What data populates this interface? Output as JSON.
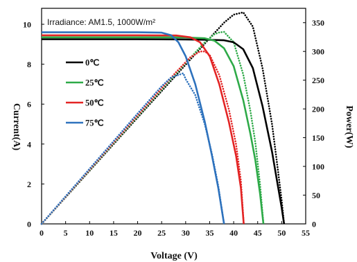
{
  "chart_data": {
    "type": "line",
    "annotation": "Irradiance: AM1.5,  1000W/m²",
    "xlabel": "Voltage (V)",
    "ylabel_left": "Current(A)",
    "ylabel_right": "Power(W)",
    "xlim": [
      0,
      55
    ],
    "ylim_left": [
      0,
      10.8
    ],
    "ylim_right": [
      0,
      375
    ],
    "x_ticks": [
      0,
      5,
      10,
      15,
      20,
      25,
      30,
      35,
      40,
      45,
      50,
      55
    ],
    "y_left_ticks": [
      0,
      2,
      4,
      6,
      8,
      10
    ],
    "y_right_ticks": [
      0,
      50,
      100,
      150,
      200,
      250,
      300,
      350
    ],
    "legend_placement": "upper-left",
    "series": [
      {
        "name": "0℃",
        "color": "#000000",
        "iv": [
          [
            0,
            9.25
          ],
          [
            10,
            9.25
          ],
          [
            20,
            9.25
          ],
          [
            30,
            9.24
          ],
          [
            35,
            9.22
          ],
          [
            38,
            9.2
          ],
          [
            40,
            9.1
          ],
          [
            42,
            8.75
          ],
          [
            44,
            7.8
          ],
          [
            46,
            5.9
          ],
          [
            48,
            3.6
          ],
          [
            49,
            2.2
          ],
          [
            50,
            0.8
          ],
          [
            50.5,
            0
          ]
        ],
        "power": [
          [
            0,
            0
          ],
          [
            10,
            92.5
          ],
          [
            20,
            185
          ],
          [
            30,
            277
          ],
          [
            35,
            323
          ],
          [
            38,
            350
          ],
          [
            40,
            364
          ],
          [
            42,
            368
          ],
          [
            44,
            343
          ],
          [
            46,
            271
          ],
          [
            48,
            173
          ],
          [
            49,
            108
          ],
          [
            50,
            40
          ],
          [
            50.5,
            0
          ]
        ]
      },
      {
        "name": "25℃",
        "color": "#2eaa48",
        "iv": [
          [
            0,
            9.35
          ],
          [
            10,
            9.35
          ],
          [
            20,
            9.35
          ],
          [
            30,
            9.34
          ],
          [
            34,
            9.3
          ],
          [
            36,
            9.18
          ],
          [
            38,
            8.8
          ],
          [
            40,
            7.9
          ],
          [
            42,
            6.2
          ],
          [
            43.5,
            4.5
          ],
          [
            44.5,
            3.2
          ],
          [
            45.5,
            1.5
          ],
          [
            46.2,
            0
          ]
        ],
        "power": [
          [
            0,
            0
          ],
          [
            10,
            93.5
          ],
          [
            20,
            187
          ],
          [
            30,
            280
          ],
          [
            34,
            316
          ],
          [
            36,
            330
          ],
          [
            37,
            333
          ],
          [
            38,
            334
          ],
          [
            40,
            316
          ],
          [
            42,
            260
          ],
          [
            43.5,
            196
          ],
          [
            44.5,
            142
          ],
          [
            45.5,
            68
          ],
          [
            46.2,
            0
          ]
        ]
      },
      {
        "name": "50℃",
        "color": "#e32424",
        "iv": [
          [
            0,
            9.45
          ],
          [
            10,
            9.45
          ],
          [
            20,
            9.45
          ],
          [
            28,
            9.44
          ],
          [
            31,
            9.35
          ],
          [
            33,
            9.1
          ],
          [
            35,
            8.4
          ],
          [
            37,
            7.0
          ],
          [
            39,
            5.1
          ],
          [
            40.5,
            3.4
          ],
          [
            41.5,
            1.8
          ],
          [
            42.1,
            0
          ]
        ],
        "power": [
          [
            0,
            0
          ],
          [
            10,
            94.5
          ],
          [
            20,
            189
          ],
          [
            28,
            264
          ],
          [
            31,
            290
          ],
          [
            33,
            300
          ],
          [
            34,
            300
          ],
          [
            35,
            294
          ],
          [
            37,
            259
          ],
          [
            39,
            199
          ],
          [
            40.5,
            138
          ],
          [
            41.5,
            75
          ],
          [
            42.1,
            0
          ]
        ]
      },
      {
        "name": "75℃",
        "color": "#2e72bd",
        "iv": [
          [
            0,
            9.6
          ],
          [
            10,
            9.6
          ],
          [
            20,
            9.6
          ],
          [
            25,
            9.58
          ],
          [
            27,
            9.45
          ],
          [
            28.5,
            9.1
          ],
          [
            30,
            8.4
          ],
          [
            32,
            7.0
          ],
          [
            34,
            5.1
          ],
          [
            35.5,
            3.4
          ],
          [
            36.8,
            1.8
          ],
          [
            38,
            0
          ]
        ],
        "power": [
          [
            0,
            0
          ],
          [
            10,
            96
          ],
          [
            20,
            192
          ],
          [
            25,
            239.5
          ],
          [
            27,
            255
          ],
          [
            28.5,
            259
          ],
          [
            29.5,
            262
          ],
          [
            30,
            252
          ],
          [
            32,
            224
          ],
          [
            34,
            173
          ],
          [
            35.5,
            121
          ],
          [
            36.8,
            66
          ],
          [
            38,
            0
          ]
        ]
      }
    ]
  }
}
